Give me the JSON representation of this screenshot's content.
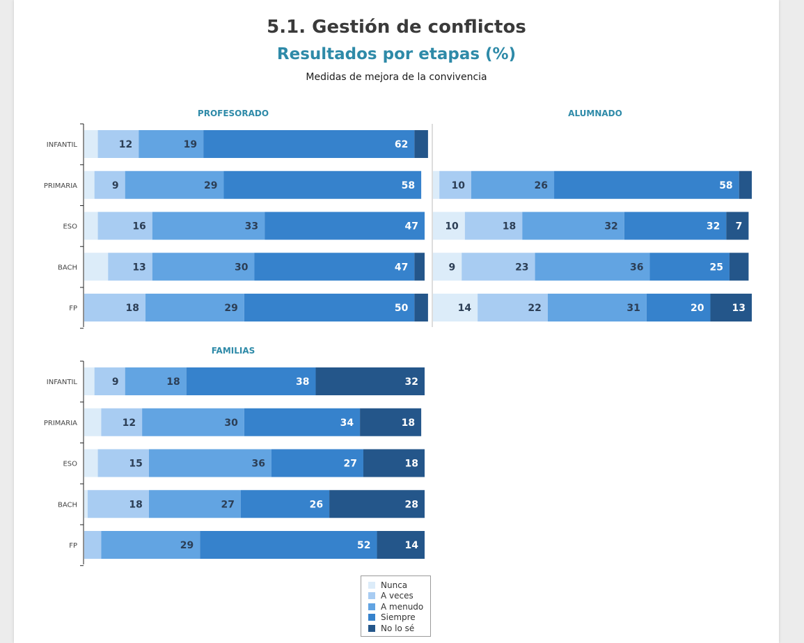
{
  "header": {
    "title": "5.1. Gestión de conflictos",
    "subtitle": "Resultados por etapas (%)",
    "description": "Medidas de mejora de la convivencia"
  },
  "colors": {
    "Nunca": "#dcecf9",
    "A veces": "#a8ccf2",
    "A menudo": "#62a4e2",
    "Siempre": "#3682cc",
    "No lo sé": "#24568a"
  },
  "legend": [
    {
      "label": "Nunca",
      "color": "#dcecf9"
    },
    {
      "label": "A veces",
      "color": "#a8ccf2"
    },
    {
      "label": "A menudo",
      "color": "#62a4e2"
    },
    {
      "label": "Siempre",
      "color": "#3682cc"
    },
    {
      "label": "No lo sé",
      "color": "#24568a"
    }
  ],
  "chart_data": [
    {
      "type": "bar",
      "orientation": "horizontal",
      "stacked": true,
      "title": "PROFESORADO",
      "categories": [
        "INFANTIL",
        "PRIMARIA",
        "ESO",
        "BACH",
        "FP"
      ],
      "xlim": [
        0,
        100
      ],
      "series": [
        {
          "name": "Nunca",
          "values": [
            4,
            3,
            4,
            7,
            0
          ]
        },
        {
          "name": "A veces",
          "values": [
            12,
            9,
            16,
            13,
            18
          ]
        },
        {
          "name": "A menudo",
          "values": [
            19,
            29,
            33,
            30,
            29
          ]
        },
        {
          "name": "Siempre",
          "values": [
            62,
            58,
            47,
            47,
            50
          ]
        },
        {
          "name": "No lo sé",
          "values": [
            4,
            0,
            0,
            3,
            4
          ]
        }
      ],
      "data_labels": [
        [
          "",
          "12",
          "19",
          "62",
          ""
        ],
        [
          "",
          "9",
          "29",
          "58",
          ""
        ],
        [
          "",
          "16",
          "33",
          "47",
          ""
        ],
        [
          "",
          "13",
          "30",
          "47",
          ""
        ],
        [
          "",
          "18",
          "29",
          "50",
          ""
        ]
      ]
    },
    {
      "type": "bar",
      "orientation": "horizontal",
      "stacked": true,
      "title": "ALUMNADO",
      "categories": [
        "INFANTIL",
        "PRIMARIA",
        "ESO",
        "BACH",
        "FP"
      ],
      "xlim": [
        0,
        100
      ],
      "series": [
        {
          "name": "Nunca",
          "values": [
            0,
            2,
            10,
            9,
            14
          ]
        },
        {
          "name": "A veces",
          "values": [
            0,
            10,
            18,
            23,
            22
          ]
        },
        {
          "name": "A menudo",
          "values": [
            0,
            26,
            32,
            36,
            31
          ]
        },
        {
          "name": "Siempre",
          "values": [
            0,
            58,
            32,
            25,
            20
          ]
        },
        {
          "name": "No lo sé",
          "values": [
            0,
            4,
            7,
            6,
            13
          ]
        }
      ],
      "data_labels": [
        [
          "",
          "",
          "",
          "",
          ""
        ],
        [
          "",
          "10",
          "26",
          "58",
          ""
        ],
        [
          "10",
          "18",
          "32",
          "32",
          "7"
        ],
        [
          "9",
          "23",
          "36",
          "25",
          ""
        ],
        [
          "14",
          "22",
          "31",
          "20",
          "13"
        ]
      ]
    },
    {
      "type": "bar",
      "orientation": "horizontal",
      "stacked": true,
      "title": "FAMILIAS",
      "categories": [
        "INFANTIL",
        "PRIMARIA",
        "ESO",
        "BACH",
        "FP"
      ],
      "xlim": [
        0,
        100
      ],
      "series": [
        {
          "name": "Nunca",
          "values": [
            3,
            5,
            4,
            1,
            0
          ]
        },
        {
          "name": "A veces",
          "values": [
            9,
            12,
            15,
            18,
            5
          ]
        },
        {
          "name": "A menudo",
          "values": [
            18,
            30,
            36,
            27,
            29
          ]
        },
        {
          "name": "Siempre",
          "values": [
            38,
            34,
            27,
            26,
            52
          ]
        },
        {
          "name": "No lo sé",
          "values": [
            32,
            18,
            18,
            28,
            14
          ]
        }
      ],
      "data_labels": [
        [
          "",
          "9",
          "18",
          "38",
          "32"
        ],
        [
          "",
          "12",
          "30",
          "34",
          "18"
        ],
        [
          "",
          "15",
          "36",
          "27",
          "18"
        ],
        [
          "",
          "18",
          "27",
          "26",
          "28"
        ],
        [
          "",
          "",
          "29",
          "52",
          "14"
        ]
      ]
    }
  ]
}
